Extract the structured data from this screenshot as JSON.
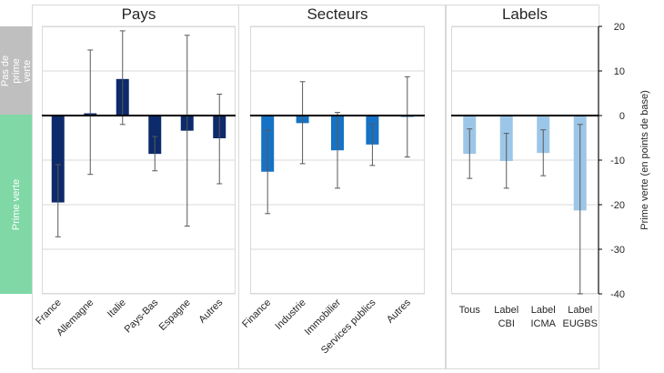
{
  "y_axis_label": "Prime verte (en points de base)",
  "side_labels": {
    "top": "Pas de prime verte",
    "bottom": "Prime verte"
  },
  "colors": {
    "side_top": "#bfbfbf",
    "side_bottom": "#7fd8a6",
    "pays": "#0d2a6b",
    "secteurs": "#1672c4",
    "labels": "#9cc6e8",
    "grid": "#d9d9d9",
    "error": "#595959"
  },
  "chart_data": [
    {
      "type": "bar",
      "title": "Pays",
      "categories": [
        "France",
        "Allemagne",
        "Italie",
        "Pays-Bas",
        "Espagne",
        "Autres"
      ],
      "values": [
        -19.5,
        0.5,
        8.2,
        -8.6,
        -3.4,
        -5.1
      ],
      "error_low": [
        -27.2,
        -13.2,
        -2.0,
        -12.4,
        -24.8,
        -15.3
      ],
      "error_high": [
        -11.0,
        14.7,
        19.0,
        -4.7,
        18.0,
        4.8
      ],
      "ylim": [
        -40,
        20
      ],
      "xlabel": "",
      "ylabel": "Prime verte (en points de base)",
      "grid": true
    },
    {
      "type": "bar",
      "title": "Secteurs",
      "categories": [
        "Finance",
        "Industrie",
        "Immobilier",
        "Services publics",
        "Autres"
      ],
      "values": [
        -12.6,
        -1.7,
        -7.8,
        -6.5,
        -0.3
      ],
      "error_low": [
        -22.0,
        -10.8,
        -16.3,
        -11.2,
        -9.3
      ],
      "error_high": [
        -3.3,
        7.6,
        0.7,
        -1.9,
        8.7
      ],
      "ylim": [
        -40,
        20
      ],
      "xlabel": "",
      "ylabel": "Prime verte (en points de base)",
      "grid": true
    },
    {
      "type": "bar",
      "title": "Labels",
      "categories": [
        "Tous",
        "Label\nCBI",
        "Label\nICMA",
        "Label\nEUGBS"
      ],
      "values": [
        -8.6,
        -10.2,
        -8.4,
        -21.3
      ],
      "error_low": [
        -14.1,
        -16.3,
        -13.5,
        -40.0
      ],
      "error_high": [
        -3.0,
        -4.0,
        -3.2,
        -2.0
      ],
      "ylim": [
        -40,
        20
      ],
      "yticks": [
        20,
        10,
        0,
        -10,
        -20,
        -30,
        -40
      ],
      "xlabel": "",
      "ylabel": "Prime verte (en points de base)",
      "grid": true
    }
  ]
}
